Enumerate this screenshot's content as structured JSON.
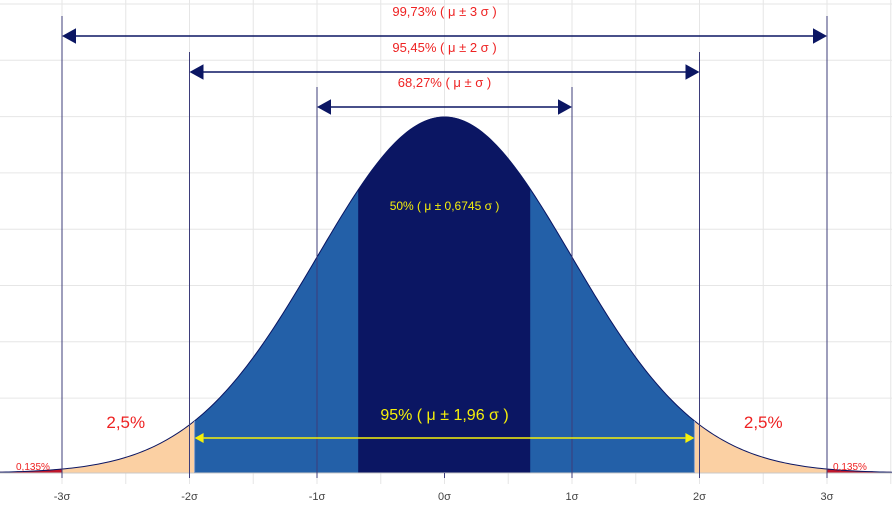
{
  "chart_data": {
    "type": "area",
    "title": "",
    "xlabel": "",
    "ylabel": "",
    "xlim": [
      -3.5,
      3.5
    ],
    "ylim": [
      0,
      0.4
    ],
    "grid": true,
    "curve": "normal density N(0,1)",
    "x_ticks": [
      {
        "value": -3,
        "label": "-3σ"
      },
      {
        "value": -2,
        "label": "-2σ"
      },
      {
        "value": -1,
        "label": "-1σ"
      },
      {
        "value": 0,
        "label": "0σ"
      },
      {
        "value": 1,
        "label": "1σ"
      },
      {
        "value": 2,
        "label": "2σ"
      },
      {
        "value": 3,
        "label": "3σ"
      }
    ],
    "regions": [
      {
        "from": -3.5,
        "to": -3,
        "color": "#c0162b"
      },
      {
        "from": -3,
        "to": -1.96,
        "color": "#fbd0a3"
      },
      {
        "from": -1.96,
        "to": -0.6745,
        "color": "#2360a8"
      },
      {
        "from": -0.6745,
        "to": 0.6745,
        "color": "#0b1663"
      },
      {
        "from": 0.6745,
        "to": 1.96,
        "color": "#2360a8"
      },
      {
        "from": 1.96,
        "to": 3,
        "color": "#fbd0a3"
      },
      {
        "from": 3,
        "to": 3.5,
        "color": "#c0162b"
      }
    ],
    "sigma_lines": [
      -3,
      -2,
      -1,
      1,
      2,
      3
    ],
    "intervals": [
      {
        "from": -3,
        "to": 3,
        "label": "99,73% ( μ ± 3 σ )",
        "color": "#0b1663",
        "label_color": "#ee2222"
      },
      {
        "from": -2,
        "to": 2,
        "label": "95,45% ( μ ± 2 σ )",
        "color": "#0b1663",
        "label_color": "#ee2222"
      },
      {
        "from": -1,
        "to": 1,
        "label": "68,27% ( μ ±  σ )",
        "color": "#0b1663",
        "label_color": "#ee2222"
      },
      {
        "from": -1.96,
        "to": 1.96,
        "label": "95% ( μ ± 1,96 σ )",
        "color": "#f6f00a",
        "label_color": "#f6f00a"
      }
    ],
    "annotations": [
      {
        "id": "center",
        "text": "50% ( μ ± 0,6745 σ )",
        "color": "#f6f00a"
      },
      {
        "id": "tail-left",
        "text": "2,5%",
        "color": "#ee2222"
      },
      {
        "id": "tail-right",
        "text": "2,5%",
        "color": "#ee2222"
      },
      {
        "id": "extreme-left",
        "text": "0,135%",
        "color": "#ee2222"
      },
      {
        "id": "extreme-right",
        "text": "0,135%",
        "color": "#ee2222"
      }
    ],
    "colors": {
      "grid": "#e6e6e6",
      "sigma_line": "#3d3d7a",
      "axis": "#c8c8c8",
      "tick_label": "#444444"
    }
  }
}
